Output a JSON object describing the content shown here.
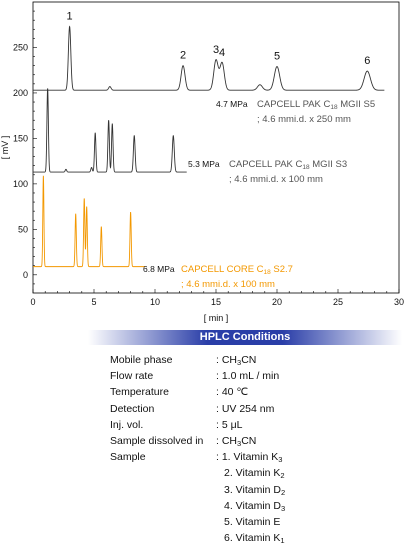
{
  "chart_data": {
    "type": "line",
    "xlabel": "[ min ]",
    "ylabel": "[ mV ]",
    "xlim": [
      0,
      30
    ],
    "ylim": [
      -20,
      300
    ],
    "x_ticks": [
      0,
      5,
      10,
      15,
      20,
      25,
      30
    ],
    "y_ticks": [
      0,
      50,
      100,
      150,
      200,
      250
    ],
    "series": [
      {
        "name": "CAPCELL PAK C18 MGII S5 ; 4.6 mmi.d. x 250 mm",
        "color": "#333333",
        "baseline": 203,
        "end_x": 28.8,
        "peaks": [
          {
            "label": "1",
            "t": 3.0,
            "h": 70,
            "w": 0.1
          },
          {
            "label": "",
            "t": 6.3,
            "h": 4,
            "w": 0.1
          },
          {
            "label": "2",
            "t": 12.3,
            "h": 27,
            "w": 0.16
          },
          {
            "label": "3",
            "t": 15.0,
            "h": 33,
            "w": 0.18
          },
          {
            "label": "4",
            "t": 15.5,
            "h": 30,
            "w": 0.18
          },
          {
            "label": "",
            "t": 18.6,
            "h": 6,
            "w": 0.2
          },
          {
            "label": "5",
            "t": 20.0,
            "h": 26,
            "w": 0.22
          },
          {
            "label": "6",
            "t": 27.4,
            "h": 21,
            "w": 0.26
          }
        ]
      },
      {
        "name": "CAPCELL PAK C18 MGII S3 ; 4.6 mmi.d. x 100 mm",
        "color": "#333333",
        "baseline": 113,
        "end_x": 12.6,
        "peaks": [
          {
            "t": 1.2,
            "h": 92,
            "w": 0.06
          },
          {
            "t": 2.7,
            "h": 3,
            "w": 0.06
          },
          {
            "t": 4.8,
            "h": 5,
            "w": 0.06
          },
          {
            "t": 5.1,
            "h": 43,
            "w": 0.06
          },
          {
            "t": 6.2,
            "h": 57,
            "w": 0.06
          },
          {
            "t": 6.5,
            "h": 53,
            "w": 0.06
          },
          {
            "t": 8.3,
            "h": 40,
            "w": 0.07
          },
          {
            "t": 11.5,
            "h": 40,
            "w": 0.08
          }
        ]
      },
      {
        "name": "CAPCELL CORE C18 S2.7 ; 4.6 mmi.d. x 100 mm",
        "color": "#f39800",
        "baseline": 9,
        "end_x": 9.2,
        "peaks": [
          {
            "t": 0.85,
            "h": 100,
            "w": 0.045
          },
          {
            "t": 3.5,
            "h": 58,
            "w": 0.05
          },
          {
            "t": 4.2,
            "h": 75,
            "w": 0.05
          },
          {
            "t": 4.4,
            "h": 66,
            "w": 0.05
          },
          {
            "t": 5.6,
            "h": 44,
            "w": 0.05
          },
          {
            "t": 8.0,
            "h": 60,
            "w": 0.05
          }
        ]
      }
    ],
    "annotations": [
      {
        "pressure": "4.7 MPa",
        "column": "CAPCELL PAK C",
        "sub": "18",
        "grade": "MGII S5",
        "dims": "; 4.6 mmi.d. x 250 mm",
        "color": "#555555"
      },
      {
        "pressure": "5.3 MPa",
        "column": "CAPCELL PAK C",
        "sub": "18",
        "grade": "MGII S3",
        "dims": "; 4.6 mmi.d. x 100 mm",
        "color": "#555555"
      },
      {
        "pressure": "6.8 MPa",
        "column": "CAPCELL CORE C",
        "sub": "18",
        "grade": "S2.7",
        "dims": "; 4.6 mmi.d. x 100 mm",
        "color": "#f39800"
      }
    ]
  },
  "conditions": {
    "title": "HPLC Conditions",
    "rows": [
      {
        "label": "Mobile phase",
        "value": ": CH3CN"
      },
      {
        "label": "Flow rate",
        "value": ": 1.0 mL / min"
      },
      {
        "label": "Temperature",
        "value": ": 40 ℃"
      },
      {
        "label": "Detection",
        "value": ": UV 254 nm"
      },
      {
        "label": "Inj. vol.",
        "value": ": 5 μL"
      },
      {
        "label": "Sample dissolved in",
        "value": ": CH3CN"
      },
      {
        "label": "Sample",
        "value": ": 1. Vitamin K3"
      },
      {
        "label": "",
        "value": "2. Vitamin K2"
      },
      {
        "label": "",
        "value": "3. Vitamin D2"
      },
      {
        "label": "",
        "value": "4. Vitamin D3"
      },
      {
        "label": "",
        "value": "5. Vitamin E"
      },
      {
        "label": "",
        "value": "6. Vitamin K1"
      }
    ]
  }
}
